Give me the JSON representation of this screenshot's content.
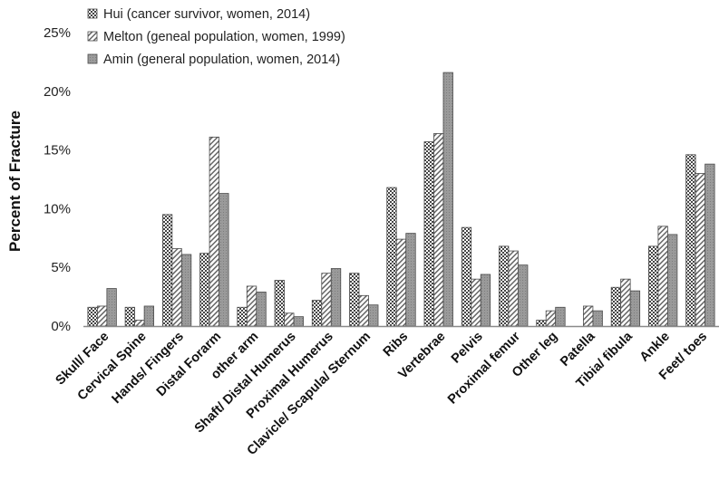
{
  "chart_data": {
    "type": "bar",
    "title": "",
    "xlabel": "",
    "ylabel": "Percent of Fracture",
    "ylim": [
      0,
      25
    ],
    "yticks": [
      0,
      5,
      10,
      15,
      20,
      25
    ],
    "ytick_labels": [
      "0%",
      "5%",
      "10%",
      "15%",
      "20%",
      "25%"
    ],
    "grid": false,
    "legend_position": "top-left",
    "categories": [
      "Skull/ Face",
      "Cervical Spine",
      "Hands/ Fingers",
      "Distal Forarm",
      "other arm",
      "Shaft/ Distal Humerus",
      "Proximal Humerus",
      "Clavicle/ Scapula/ Sternum",
      "Ribs",
      "Vertebrae",
      "Pelvis",
      "Proximal femur",
      "Other leg",
      "Patella",
      "Tibia/ fibula",
      "Ankle",
      "Feet/ toes"
    ],
    "series": [
      {
        "name": "Hui (cancer survivor, women, 2014)",
        "pattern": "checker",
        "values": [
          1.6,
          1.6,
          9.5,
          6.2,
          1.6,
          3.9,
          2.2,
          4.5,
          11.8,
          15.7,
          8.4,
          6.8,
          0.5,
          0,
          3.3,
          6.8,
          14.6
        ]
      },
      {
        "name": "Melton (geneal population, women, 1999)",
        "pattern": "hatch",
        "values": [
          1.7,
          0.5,
          6.6,
          16.1,
          3.4,
          1.1,
          4.5,
          2.6,
          7.4,
          16.4,
          4.0,
          6.4,
          1.3,
          1.7,
          4.0,
          8.5,
          13.0
        ]
      },
      {
        "name": "Amin (general population, women, 2014)",
        "pattern": "solid",
        "values": [
          3.2,
          1.7,
          6.1,
          11.3,
          2.9,
          0.8,
          4.9,
          1.8,
          7.9,
          21.6,
          4.4,
          5.2,
          1.6,
          1.3,
          3.0,
          7.8,
          13.8
        ]
      }
    ]
  }
}
